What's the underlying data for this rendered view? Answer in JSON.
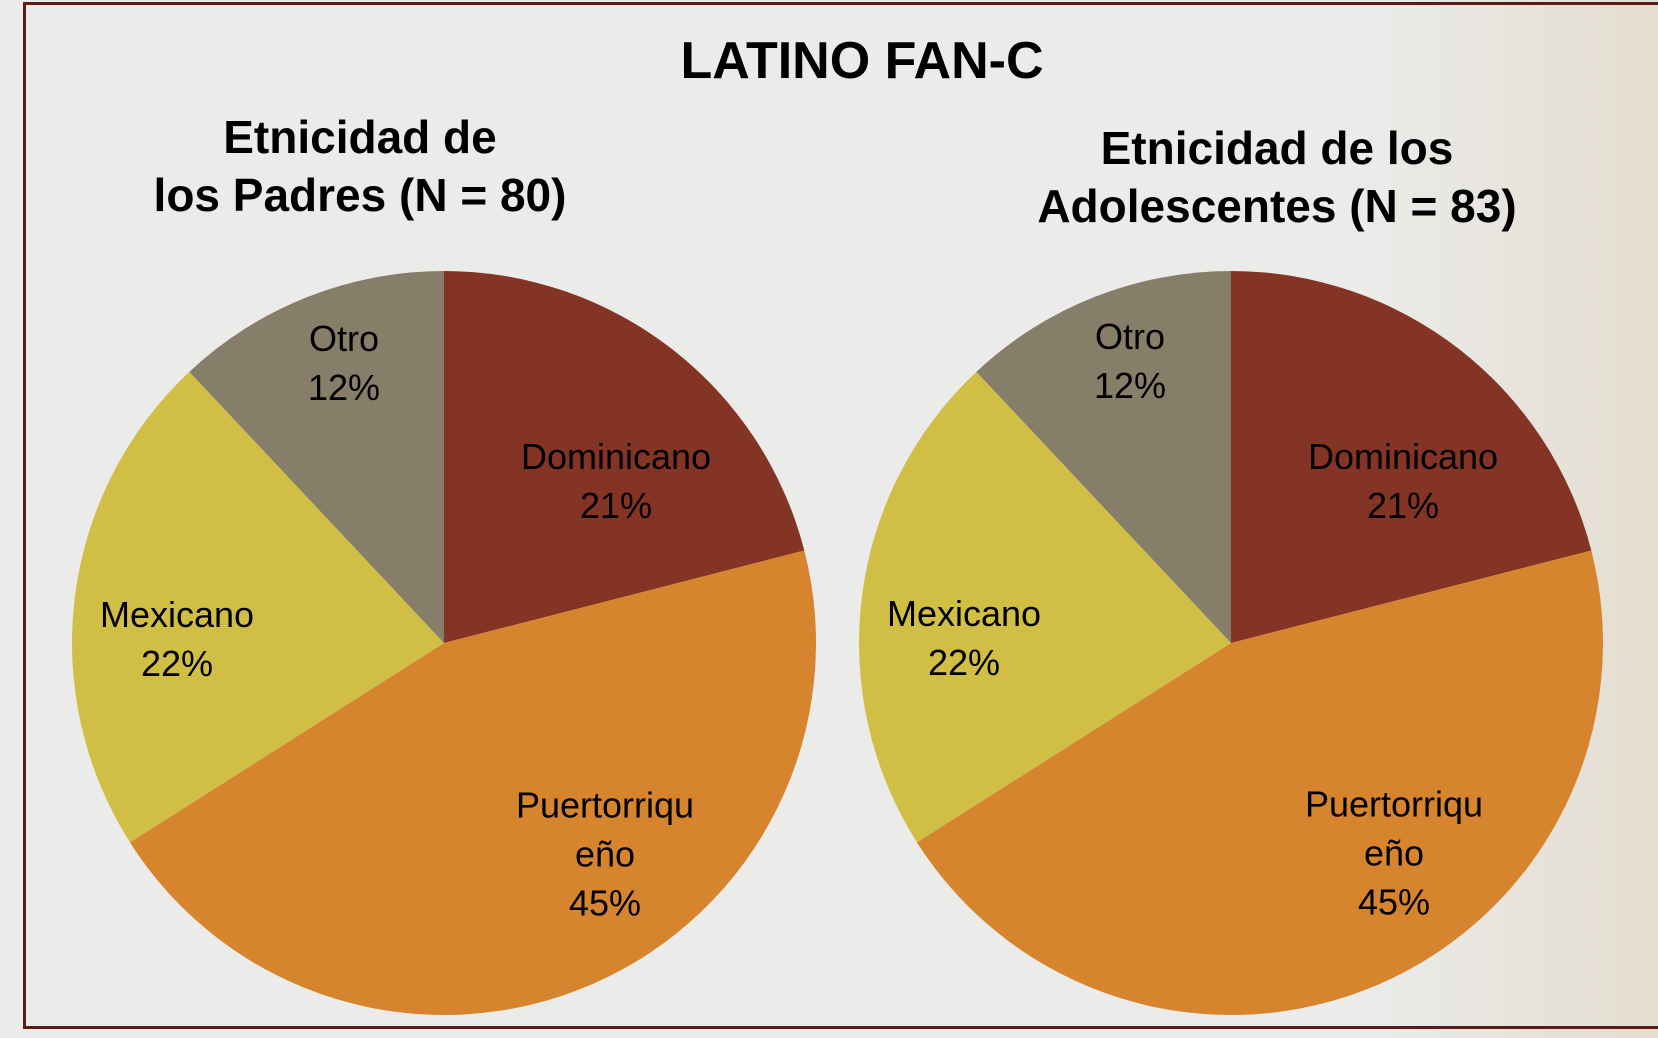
{
  "header": {
    "title": "LATINO FAN-C"
  },
  "chart_data": [
    {
      "type": "pie",
      "title": [
        "Etnicidad de",
        "los Padres (N = 80)"
      ],
      "categories": [
        "Dominicano",
        "Puertorriqueño",
        "Mexicano",
        "Otro"
      ],
      "values": [
        21,
        45,
        22,
        12
      ],
      "value_labels": [
        "21%",
        "45%",
        "22%",
        "12%"
      ],
      "colors": [
        "#843424",
        "#d6852e",
        "#d1bf45",
        "#877e6a"
      ]
    },
    {
      "type": "pie",
      "title": [
        "Etnicidad de los",
        "Adolescentes (N = 83)"
      ],
      "categories": [
        "Dominicano",
        "Puertorriqueño",
        "Mexicano",
        "Otro"
      ],
      "values": [
        21,
        45,
        22,
        12
      ],
      "value_labels": [
        "21%",
        "45%",
        "22%",
        "12%"
      ],
      "colors": [
        "#843424",
        "#d6852e",
        "#d1bf45",
        "#877e6a"
      ]
    }
  ]
}
